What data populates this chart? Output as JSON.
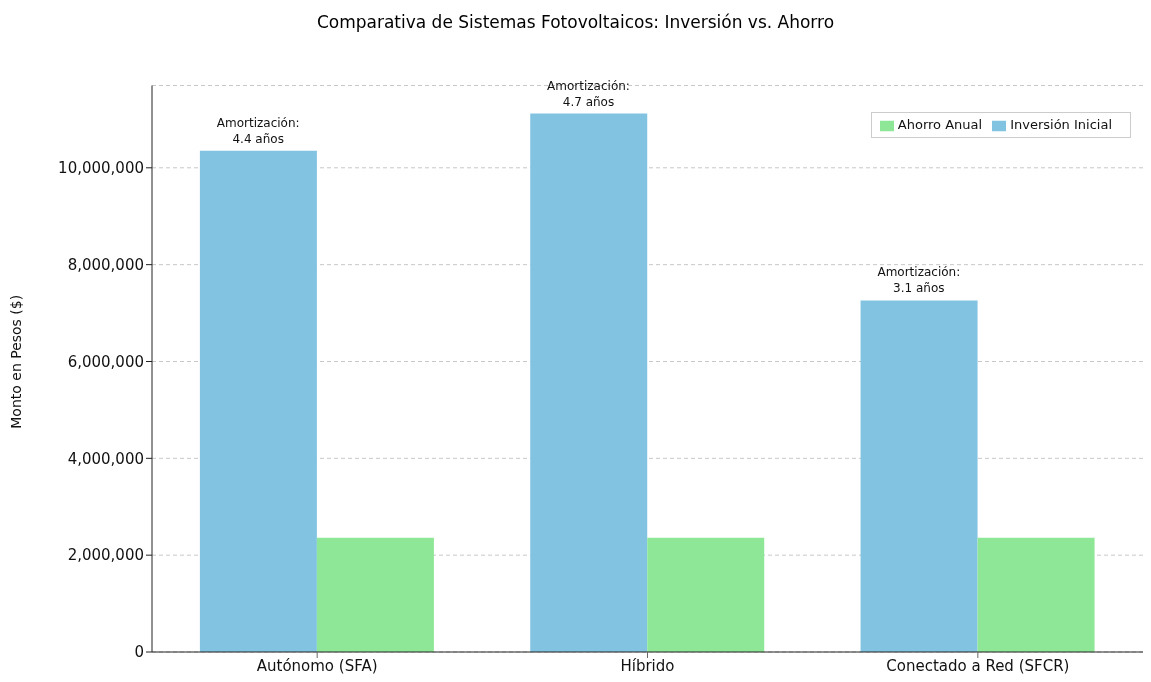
{
  "chart_data": {
    "type": "bar",
    "title": "Comparativa de Sistemas Fotovoltaicos: Inversión vs. Ahorro",
    "ylabel": "Monto en Pesos ($)",
    "categories": [
      "Autónomo (SFA)",
      "Híbrido",
      "Conectado a Red (SFCR)"
    ],
    "series": [
      {
        "name": "Inversión Inicial",
        "color": "#82c3e2",
        "values": [
          10350000,
          11120000,
          7260000
        ]
      },
      {
        "name": "Ahorro Anual",
        "color": "#8ee796",
        "values": [
          2360000,
          2360000,
          2360000
        ]
      }
    ],
    "ylim": [
      0,
      11700000
    ],
    "yticks": [
      {
        "value": 0,
        "label": "0"
      },
      {
        "value": 2000000,
        "label": "2,000,000"
      },
      {
        "value": 4000000,
        "label": "4,000,000"
      },
      {
        "value": 6000000,
        "label": "6,000,000"
      },
      {
        "value": 8000000,
        "label": "8,000,000"
      },
      {
        "value": 10000000,
        "label": "10,000,000"
      }
    ],
    "grid": "y",
    "legend": "top right",
    "annotations": [
      {
        "text": "Amortización:\n4.4 años",
        "x": "Autónomo (SFA)",
        "y": 10350000
      },
      {
        "text": "Amortización:\n4.7 años",
        "x": "Híbrido",
        "y": 11120000
      },
      {
        "text": "Amortización:\n3.1 años",
        "x": "Conectado a Red (SFCR)",
        "y": 7260000
      }
    ]
  }
}
